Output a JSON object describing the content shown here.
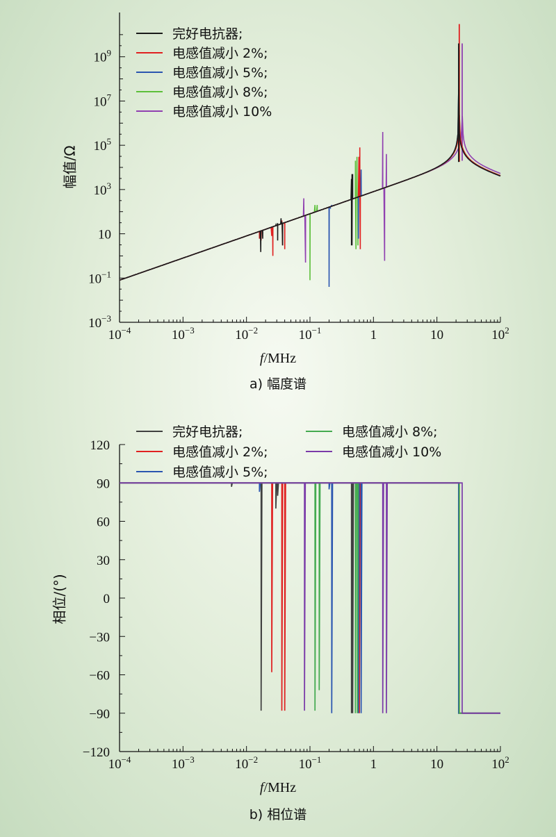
{
  "chart_data": [
    {
      "type": "line",
      "caption": "a) 幅度谱",
      "xlabel_italic": "f",
      "xlabel_rest": "/MHz",
      "ylabel": "幅值/Ω",
      "xscale": "log",
      "yscale": "log",
      "xlim": [
        0.0001,
        100
      ],
      "ylim": [
        0.001,
        100000000000
      ],
      "x_ticks": [
        {
          "value": 0.0001,
          "base": "10",
          "exp": "−4"
        },
        {
          "value": 0.001,
          "base": "10",
          "exp": "−3"
        },
        {
          "value": 0.01,
          "base": "10",
          "exp": "−2"
        },
        {
          "value": 0.1,
          "base": "10",
          "exp": "−1"
        },
        {
          "value": 1,
          "base": "1",
          "exp": ""
        },
        {
          "value": 10,
          "base": "10",
          "exp": ""
        },
        {
          "value": 100,
          "base": "10",
          "exp": "2"
        }
      ],
      "y_ticks": [
        {
          "value": 0.001,
          "base": "10",
          "exp": "−3"
        },
        {
          "value": 0.1,
          "base": "10",
          "exp": "−1"
        },
        {
          "value": 10,
          "base": "10",
          "exp": ""
        },
        {
          "value": 1000,
          "base": "10",
          "exp": "3"
        },
        {
          "value": 100000,
          "base": "10",
          "exp": "5"
        },
        {
          "value": 10000000,
          "base": "10",
          "exp": "7"
        },
        {
          "value": 1000000000,
          "base": "10",
          "exp": "9"
        }
      ],
      "legend_position": "top-left",
      "series": [
        {
          "name": "完好电抗器;",
          "color": "#1a1a1a",
          "resonances": [
            [
              0.005,
              1.5
            ],
            [
              0.0165,
              5
            ],
            [
              0.018,
              4
            ],
            [
              0.029,
              30
            ],
            [
              0.035,
              30
            ],
            [
              0.45,
              5000
            ]
          ],
          "spikes": [
            [
              0.0165,
              6.0
            ],
            [
              0.018,
              6.0
            ],
            [
              0.029,
              25
            ],
            [
              0.031,
              30
            ],
            [
              0.035,
              50
            ],
            [
              0.036,
              35
            ],
            [
              0.45,
              3000
            ],
            [
              0.46,
              5000
            ],
            [
              0.47,
              5000
            ]
          ],
          "dips": [
            [
              0.0168,
              1.5
            ],
            [
              0.031,
              5.0
            ],
            [
              0.037,
              3.0
            ],
            [
              0.45,
              3.0
            ],
            [
              0.46,
              3.0
            ]
          ],
          "peak": [
            22.0,
            4000000000
          ],
          "base": 0.5
        },
        {
          "name": "电感值减小 2%;",
          "color": "#e02020",
          "resonances": [
            [
              0.016,
              5
            ],
            [
              0.025,
              8
            ],
            [
              0.036,
              25
            ],
            [
              0.6,
              10000
            ]
          ],
          "spikes": [
            [
              0.016,
              6.0
            ],
            [
              0.017,
              5.0
            ],
            [
              0.025,
              8.0
            ],
            [
              0.036,
              40
            ],
            [
              0.038,
              30
            ],
            [
              0.04,
              25
            ],
            [
              0.59,
              30000
            ],
            [
              0.61,
              80000
            ]
          ],
          "dips": [
            [
              0.026,
              1.0
            ],
            [
              0.037,
              3.0
            ],
            [
              0.04,
              2.0
            ],
            [
              0.62,
              2.0
            ]
          ],
          "peak": [
            22.5,
            30000000000
          ],
          "base": 0.5
        },
        {
          "name": "电感值减小 5%;",
          "color": "#2a55b0",
          "resonances": [
            [
              0.2,
              0.04
            ],
            [
              0.6,
              2000
            ]
          ],
          "spikes": [
            [
              0.21,
              150
            ],
            [
              0.22,
              200
            ],
            [
              0.6,
              3000
            ],
            [
              0.64,
              8000
            ]
          ],
          "dips": [
            [
              0.2,
              0.04
            ],
            [
              0.58,
              6.0
            ]
          ],
          "peak": [
            22.0,
            3000000000
          ],
          "base": 0.5
        },
        {
          "name": "电感值减小 8%;",
          "color": "#5cbf3a",
          "resonances": [
            [
              0.1,
              0.1
            ],
            [
              0.55,
              20000
            ]
          ],
          "spikes": [
            [
              0.12,
              200
            ],
            [
              0.13,
              200
            ],
            [
              0.52,
              20000
            ],
            [
              0.55,
              30000
            ]
          ],
          "dips": [
            [
              0.1,
              0.08
            ],
            [
              0.53,
              2.0
            ],
            [
              0.57,
              3.0
            ]
          ],
          "peak": [
            22.5,
            2000000000
          ],
          "base": 0.5
        },
        {
          "name": "电感值减小 10%",
          "color": "#9040b0",
          "resonances": [
            [
              0.08,
              400
            ],
            [
              1.4,
              100000
            ]
          ],
          "spikes": [
            [
              0.08,
              400
            ],
            [
              1.4,
              400000
            ],
            [
              1.6,
              40000
            ]
          ],
          "dips": [
            [
              0.085,
              0.5
            ],
            [
              1.5,
              0.6
            ]
          ],
          "peak": [
            25.0,
            4000000000
          ],
          "base": 0.3
        }
      ]
    },
    {
      "type": "line",
      "caption": "b) 相位谱",
      "xlabel_italic": "f",
      "xlabel_rest": "/MHz",
      "ylabel": "相位/(°)",
      "xscale": "log",
      "yscale": "linear",
      "xlim": [
        0.0001,
        100
      ],
      "ylim": [
        -120,
        120
      ],
      "x_ticks": [
        {
          "value": 0.0001,
          "base": "10",
          "exp": "−4"
        },
        {
          "value": 0.001,
          "base": "10",
          "exp": "−3"
        },
        {
          "value": 0.01,
          "base": "10",
          "exp": "−2"
        },
        {
          "value": 0.1,
          "base": "10",
          "exp": "−1"
        },
        {
          "value": 1,
          "base": "1",
          "exp": ""
        },
        {
          "value": 10,
          "base": "10",
          "exp": ""
        },
        {
          "value": 100,
          "base": "10",
          "exp": "2"
        }
      ],
      "y_ticks": [
        {
          "value": 120,
          "label": "120"
        },
        {
          "value": 90,
          "label": "90"
        },
        {
          "value": 60,
          "label": "60"
        },
        {
          "value": 30,
          "label": "30"
        },
        {
          "value": 0,
          "label": "0"
        },
        {
          "value": -30,
          "label": "−30"
        },
        {
          "value": -60,
          "label": "−60"
        },
        {
          "value": -90,
          "label": "−90"
        },
        {
          "value": -120,
          "label": "−120"
        }
      ],
      "legend_position": "top",
      "series": [
        {
          "name": "完好电抗器;",
          "color": "#404040",
          "dips": [
            [
              0.0058,
              87
            ],
            [
              0.017,
              -88
            ],
            [
              0.029,
              70
            ],
            [
              0.031,
              80
            ],
            [
              0.45,
              -90
            ],
            [
              0.47,
              -90
            ]
          ],
          "flip_at": 22.0
        },
        {
          "name": "电感值减小 2%;",
          "color": "#e02020",
          "dips": [
            [
              0.025,
              -58
            ],
            [
              0.036,
              -88
            ],
            [
              0.04,
              -88
            ],
            [
              0.6,
              -90
            ]
          ],
          "flip_at": 22.5
        },
        {
          "name": "电感值减小 5%;",
          "color": "#2a55b0",
          "dips": [
            [
              0.016,
              83
            ],
            [
              0.2,
              85
            ],
            [
              0.22,
              -90
            ],
            [
              0.58,
              -90
            ],
            [
              0.64,
              -90
            ]
          ],
          "flip_at": 22.0
        },
        {
          "name": "电感值减小 8%;",
          "color": "#44aa50",
          "dips": [
            [
              0.12,
              -88
            ],
            [
              0.14,
              -72
            ],
            [
              0.52,
              -90
            ],
            [
              0.56,
              -90
            ]
          ],
          "flip_at": 22.5
        },
        {
          "name": "电感值减小 10%",
          "color": "#7a3aa8",
          "dips": [
            [
              0.082,
              -88
            ],
            [
              1.4,
              -90
            ],
            [
              1.6,
              -90
            ]
          ],
          "flip_at": 25.0
        }
      ]
    }
  ]
}
